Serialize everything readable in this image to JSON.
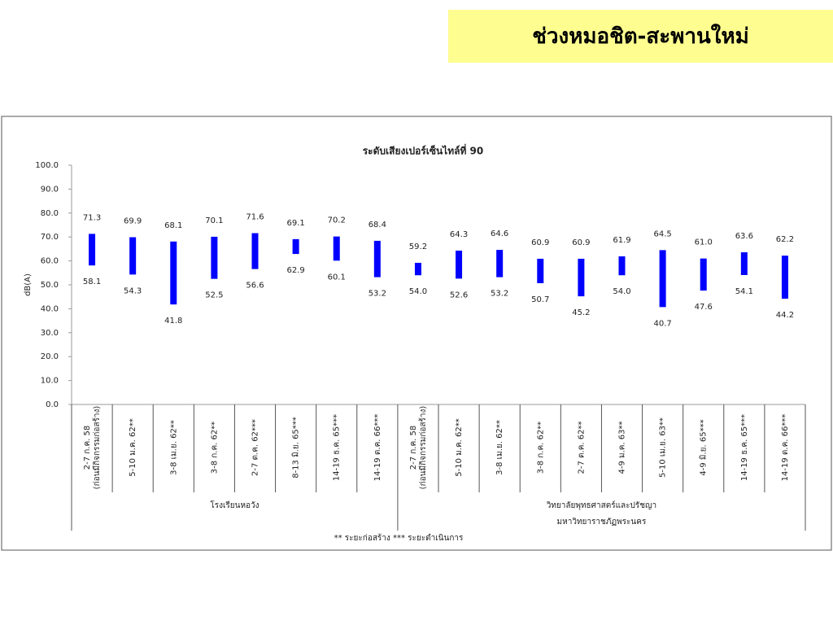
{
  "header": {
    "title": "ช่วงหมอชิต-สะพานใหม่"
  },
  "chart_data": {
    "type": "floating-bar",
    "title": "ระดับเสียงเปอร์เซ็นไทล์ที่ 90",
    "ylabel": "dB(A)",
    "color": "#0000ff",
    "ylim": [
      0,
      100
    ],
    "yticks": [
      {
        "value": 0,
        "label": "0.0"
      },
      {
        "value": 10,
        "label": "10.0"
      },
      {
        "value": 20,
        "label": "20.0"
      },
      {
        "value": 30,
        "label": "30.0"
      },
      {
        "value": 40,
        "label": "40.0"
      },
      {
        "value": 50,
        "label": "50.0"
      },
      {
        "value": 60,
        "label": "60.0"
      },
      {
        "value": 70,
        "label": "70.0"
      },
      {
        "value": 80,
        "label": "80.0"
      },
      {
        "value": 90,
        "label": "90.0"
      },
      {
        "value": 100,
        "label": "100.0"
      }
    ],
    "groups": [
      {
        "name": [
          "โรงเรียนหอวัง"
        ],
        "categories": [
          [
            "2-7 ก.ค. 58",
            "(ก่อนมีกิจกรรมก่อสร้าง)"
          ],
          "5-10 ม.ค. 62**",
          "3-8 เม.ย. 62**",
          "3-8 ก.ค. 62**",
          "2-7 ต.ค. 62***",
          "8-13 มิ.ย. 65***",
          "14-19 ธ.ค. 65***",
          "14-19 ต.ค. 66***"
        ],
        "high": [
          71.3,
          69.9,
          68.1,
          70.1,
          71.6,
          69.1,
          70.2,
          68.4
        ],
        "low": [
          58.1,
          54.3,
          41.8,
          52.5,
          56.6,
          62.9,
          60.1,
          53.2
        ]
      },
      {
        "name": [
          "วิทยาลัยพุทธศาสตร์และปรัชญา",
          "มหาวิทยาราชภัฏพระนคร"
        ],
        "categories": [
          [
            "2-7 ก.ค. 58",
            "(ก่อนมีกิจกรรมก่อสร้าง)"
          ],
          "5-10 ม.ค. 62**",
          "3-8 เม.ย. 62**",
          "3-8 ก.ค. 62**",
          "2-7 ต.ค. 62**",
          "4-9 ม.ค. 63**",
          "5-10 เม.ย. 63**",
          "4-9 มิ.ย. 65***",
          "14-19 ธ.ค. 65***",
          "14-19 ต.ค. 66***"
        ],
        "high": [
          59.2,
          64.3,
          64.6,
          60.9,
          60.9,
          61.9,
          64.5,
          61.0,
          63.6,
          62.2
        ],
        "high_labels": [
          "59.2",
          "64.3",
          "64.6",
          "60.9",
          "60.9",
          "61.9",
          "64.5",
          "61.0",
          "63.6",
          "62.2"
        ],
        "low": [
          54.0,
          52.6,
          53.2,
          50.7,
          45.2,
          54.0,
          40.7,
          47.6,
          54.1,
          44.2
        ],
        "low_labels": [
          "54.0",
          "52.6",
          "53.2",
          "50.7",
          "45.2",
          "54.0",
          "40.7",
          "47.6",
          "54.1",
          "44.2"
        ]
      }
    ],
    "footnote": "** ระยะก่อสร้าง    *** ระยะดำเนินการ"
  }
}
